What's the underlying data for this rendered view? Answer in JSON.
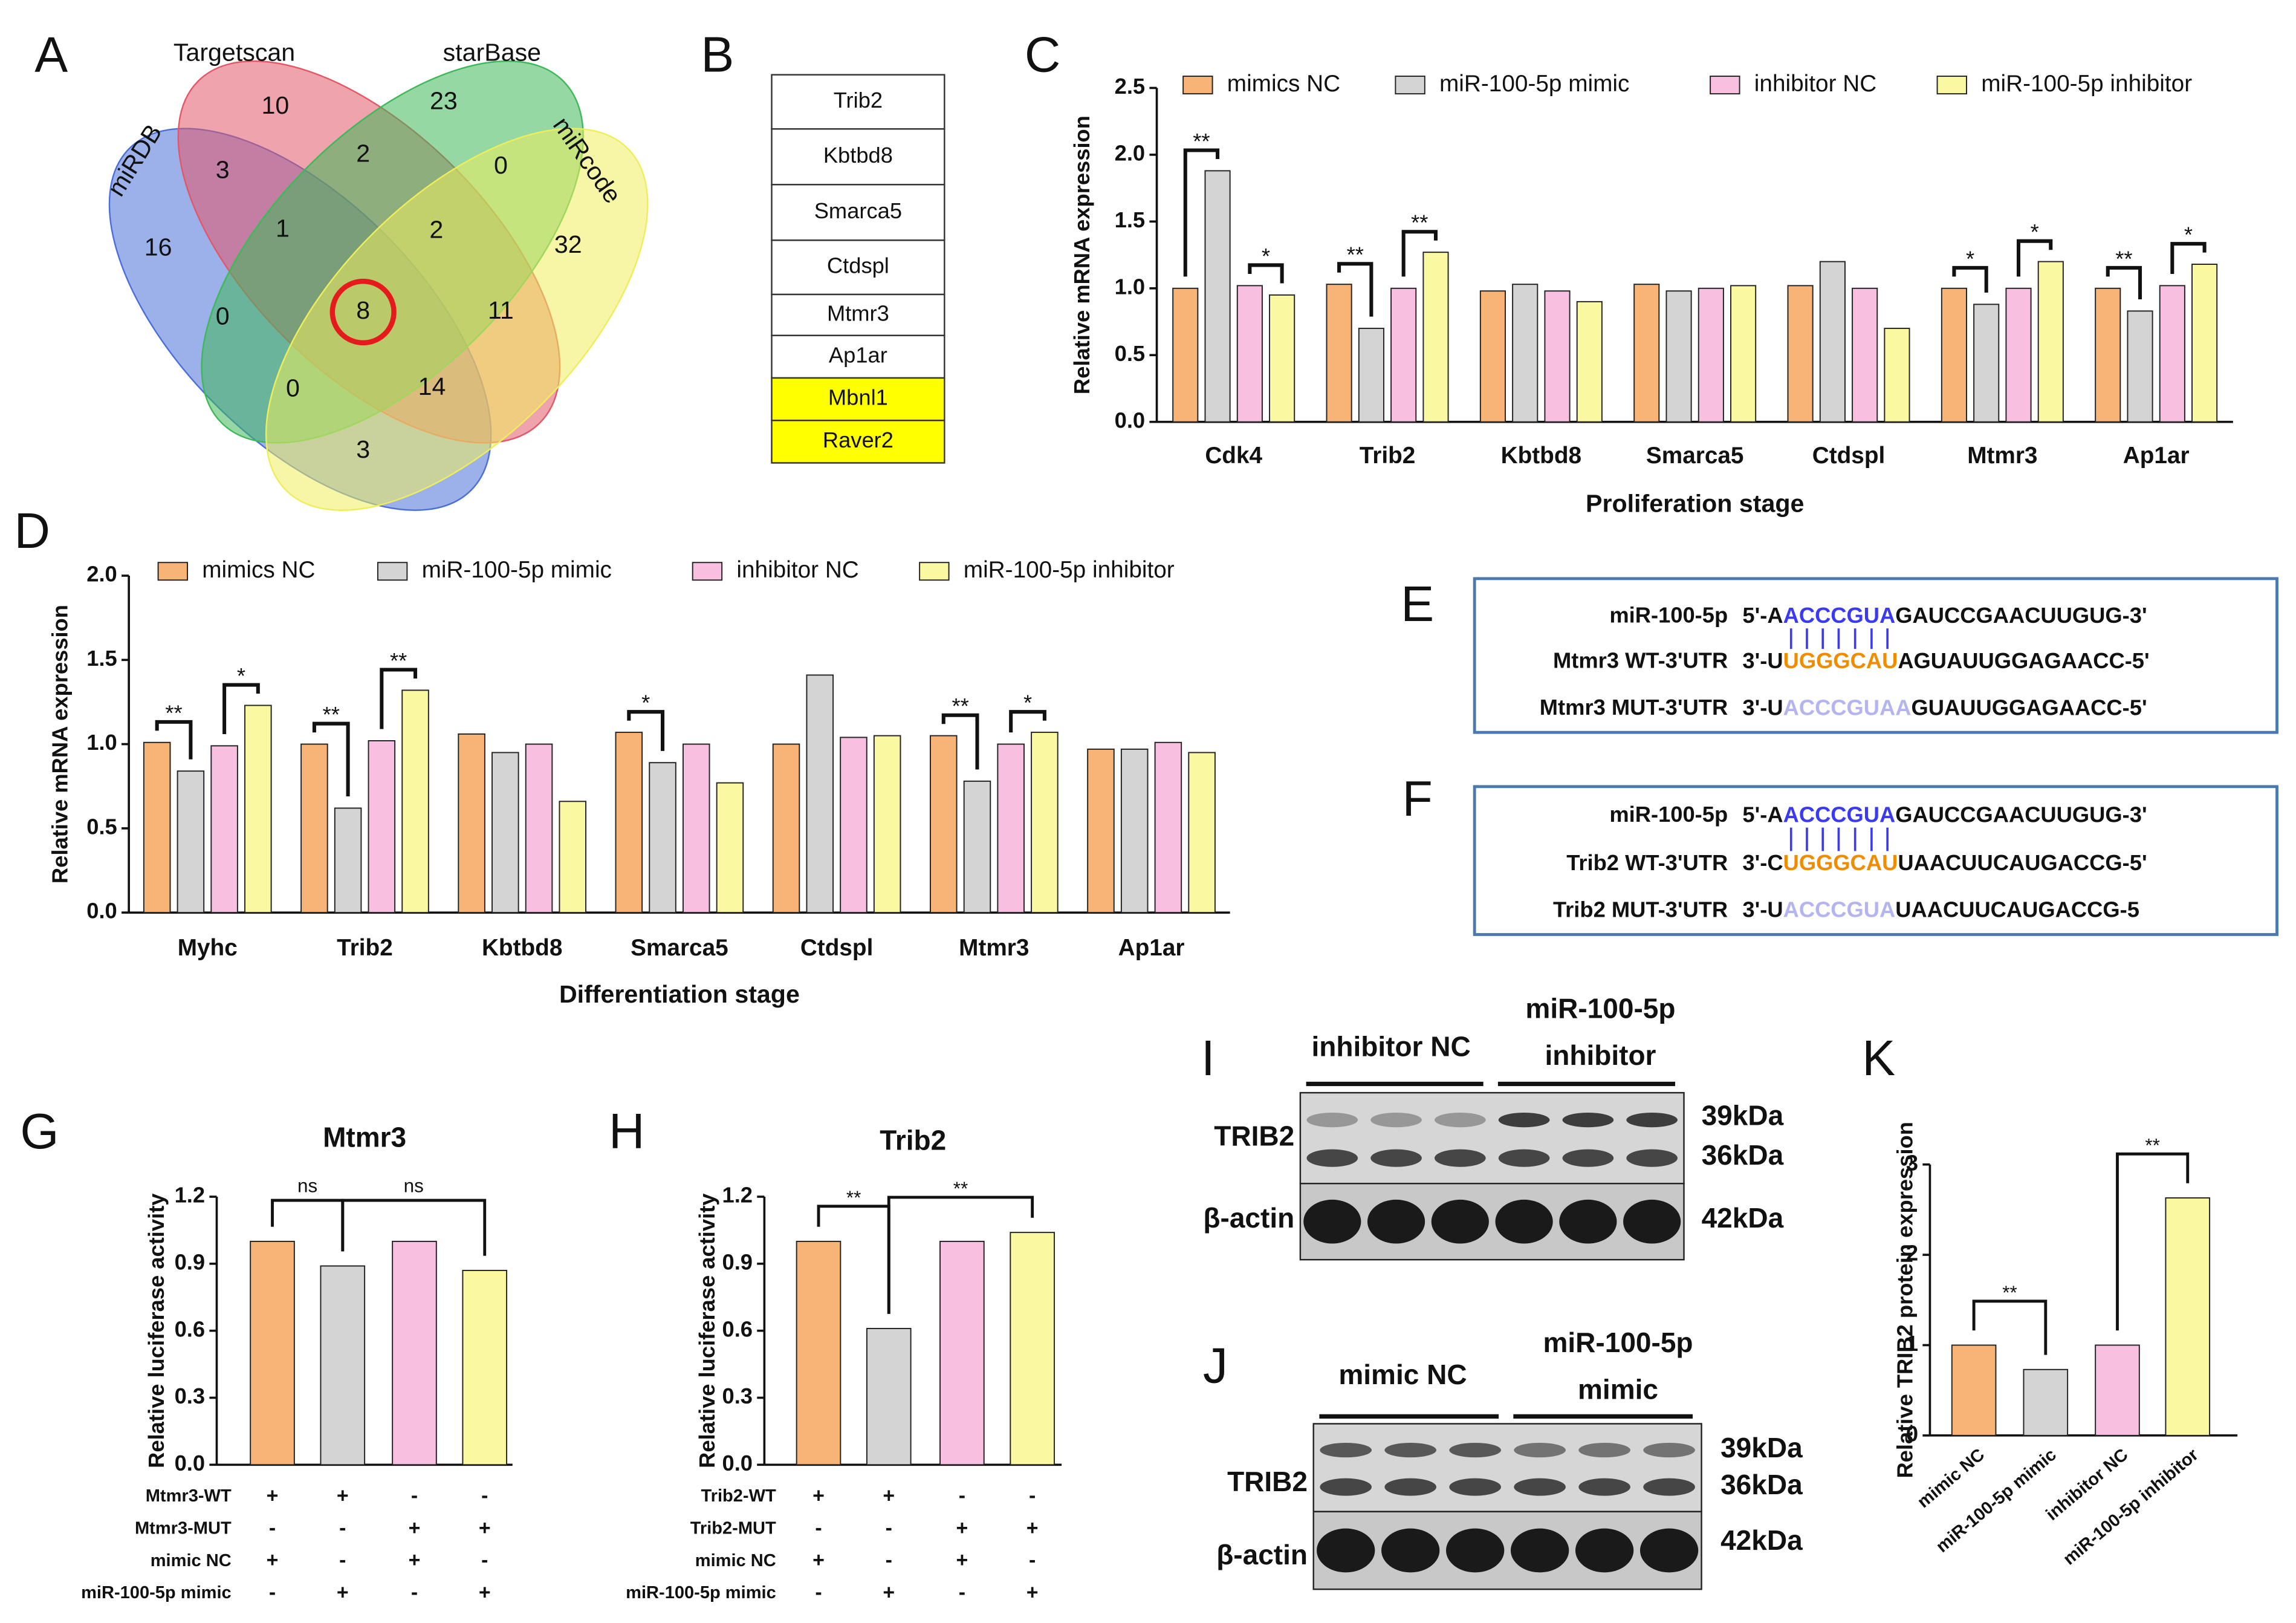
{
  "panel_labels": [
    "A",
    "B",
    "C",
    "D",
    "E",
    "F",
    "G",
    "H",
    "I",
    "J",
    "K"
  ],
  "venn": {
    "sets": [
      "miRDB",
      "Targetscan",
      "starBase",
      "miRcode"
    ],
    "colors": [
      "#4a6fd8",
      "#e25868",
      "#3fb85a",
      "#eeee5c"
    ],
    "regions": [
      10,
      23,
      3,
      2,
      0,
      16,
      1,
      2,
      32,
      0,
      8,
      11,
      0,
      14,
      3
    ]
  },
  "gene_table": {
    "rows": [
      {
        "text": "Trib2"
      },
      {
        "text": "Kbtbd8"
      },
      {
        "text": "Smarca5"
      },
      {
        "text": "Ctdspl"
      },
      {
        "text": "Mtmr3"
      },
      {
        "text": "Ap1ar"
      },
      {
        "text": "Mbnl1",
        "highlight": "#ffff00"
      },
      {
        "text": "Raver2",
        "highlight": "#ffff00"
      }
    ]
  },
  "sequences": [
    {
      "rows": [
        {
          "label": "miR-100-5p",
          "segments": [
            {
              "text": "5'-A",
              "color": "#111111"
            },
            {
              "text": "ACCCGUA",
              "color": "#3a3af0"
            },
            {
              "text": "GAUCCGAACUUGUG-3'",
              "color": "#111111"
            }
          ]
        },
        {
          "label": "Mtmr3 WT-3'UTR",
          "segments": [
            {
              "text": "3'-U",
              "color": "#111111"
            },
            {
              "text": "UGGGCAU",
              "color": "#f08c00"
            },
            {
              "text": "AGUAUUGGAGAACC-5'",
              "color": "#111111"
            }
          ]
        },
        {
          "label": "Mtmr3 MUT-3'UTR",
          "segments": [
            {
              "text": "3'-U",
              "color": "#111111"
            },
            {
              "text": "ACCCGUAA",
              "color": "#b4b4f0"
            },
            {
              "text": "GUAUUGGAGAACC-5'",
              "color": "#111111"
            }
          ]
        }
      ]
    },
    {
      "rows": [
        {
          "label": "miR-100-5p",
          "segments": [
            {
              "text": "5'-A",
              "color": "#111111"
            },
            {
              "text": "ACCCGUA",
              "color": "#3a3af0"
            },
            {
              "text": "GAUCCGAACUUGUG-3'",
              "color": "#111111"
            }
          ]
        },
        {
          "label": "Trib2 WT-3'UTR",
          "segments": [
            {
              "text": "3'-C",
              "color": "#111111"
            },
            {
              "text": "UGGGCAU",
              "color": "#f08c00"
            },
            {
              "text": "UAACUUCAUGACCG-5'",
              "color": "#111111"
            }
          ]
        },
        {
          "label": "Trib2 MUT-3'UTR",
          "segments": [
            {
              "text": "3'-U",
              "color": "#111111"
            },
            {
              "text": "ACCCGUA",
              "color": "#b4b4f0"
            },
            {
              "text": "UAACUUCAUGACCG-5",
              "color": "#111111"
            }
          ]
        }
      ]
    }
  ],
  "blots": [
    {
      "groups": [
        [
          "inhibitor NC"
        ],
        [
          "miR-100-5p",
          "inhibitor"
        ]
      ],
      "proteins": [
        "TRIB2",
        "β-actin"
      ],
      "sizes": [
        "39kDa",
        "36kDa",
        "42kDa"
      ]
    },
    {
      "groups": [
        [
          "mimic NC"
        ],
        [
          "miR-100-5p",
          "mimic"
        ]
      ],
      "proteins": [
        "TRIB2",
        "β-actin"
      ],
      "sizes": [
        "39kDa",
        "36kDa",
        "42kDa"
      ]
    }
  ],
  "chart_data": [
    {
      "type": "bar",
      "ylabel": "Relative mRNA expression",
      "xlabel": "Proliferation stage",
      "categories": [
        "Cdk4",
        "Trib2",
        "Kbtbd8",
        "Smarca5",
        "Ctdspl",
        "Mtmr3",
        "Ap1ar"
      ],
      "series": [
        {
          "name": "mimics NC",
          "color": "#f8b477",
          "values": [
            1.0,
            1.03,
            0.98,
            1.03,
            1.02,
            1.0,
            1.0
          ]
        },
        {
          "name": "miR-100-5p mimic",
          "color": "#d4d4d4",
          "values": [
            1.88,
            0.7,
            1.03,
            0.98,
            1.2,
            0.88,
            0.83
          ]
        },
        {
          "name": "inhibitor NC",
          "color": "#f9bfe0",
          "values": [
            1.02,
            1.0,
            0.98,
            1.0,
            1.0,
            1.0,
            1.02
          ]
        },
        {
          "name": "miR-100-5p inhibitor",
          "color": "#fbf8a2",
          "values": [
            0.95,
            1.27,
            0.9,
            1.02,
            0.7,
            1.2,
            1.18
          ]
        }
      ],
      "ylim": [
        0,
        2.5
      ],
      "yticks": [
        {
          "value": 0,
          "label": "0.0"
        },
        0.5,
        {
          "value": 1,
          "label": "1.0"
        },
        1.5,
        {
          "value": 2,
          "label": "2.0"
        },
        2.5
      ],
      "brackets": [
        {
          "text": "**",
          "category": 0,
          "from": 0,
          "to": 1
        },
        {
          "text": "*",
          "category": 0,
          "from": 2,
          "to": 3
        },
        {
          "text": "**",
          "category": 1,
          "from": 0,
          "to": 1
        },
        {
          "text": "**",
          "category": 1,
          "from": 2,
          "to": 3
        },
        {
          "text": "*",
          "category": 5,
          "from": 0,
          "to": 1
        },
        {
          "text": "*",
          "category": 5,
          "from": 2,
          "to": 3
        },
        {
          "text": "**",
          "category": 6,
          "from": 0,
          "to": 1
        },
        {
          "text": "*",
          "category": 6,
          "from": 2,
          "to": 3
        }
      ]
    },
    {
      "type": "bar",
      "ylabel": "Relative mRNA expression",
      "xlabel": "Differentiation stage",
      "categories": [
        "Myhc",
        "Trib2",
        "Kbtbd8",
        "Smarca5",
        "Ctdspl",
        "Mtmr3",
        "Ap1ar"
      ],
      "series": [
        {
          "name": "mimics NC",
          "color": "#f8b477",
          "values": [
            1.01,
            1.0,
            1.06,
            1.07,
            1.0,
            1.05,
            0.97
          ]
        },
        {
          "name": "miR-100-5p mimic",
          "color": "#d4d4d4",
          "values": [
            0.84,
            0.62,
            0.95,
            0.89,
            1.41,
            0.78,
            0.97
          ]
        },
        {
          "name": "inhibitor NC",
          "color": "#f9bfe0",
          "values": [
            0.99,
            1.02,
            1.0,
            1.0,
            1.04,
            1.0,
            1.01
          ]
        },
        {
          "name": "miR-100-5p inhibitor",
          "color": "#fbf8a2",
          "values": [
            1.23,
            1.32,
            0.66,
            0.77,
            1.05,
            1.07,
            0.95
          ]
        }
      ],
      "ylim": [
        0,
        2
      ],
      "yticks": [
        {
          "value": 0,
          "label": "0.0"
        },
        0.5,
        {
          "value": 1,
          "label": "1.0"
        },
        1.5,
        {
          "value": 2,
          "label": "2.0"
        }
      ],
      "brackets": [
        {
          "text": "**",
          "category": 0,
          "from": 0,
          "to": 1
        },
        {
          "text": "*",
          "category": 0,
          "from": 2,
          "to": 3
        },
        {
          "text": "**",
          "category": 1,
          "from": 0,
          "to": 1
        },
        {
          "text": "**",
          "category": 1,
          "from": 2,
          "to": 3
        },
        {
          "text": "*",
          "category": 3,
          "from": 0,
          "to": 1
        },
        {
          "text": "**",
          "category": 5,
          "from": 0,
          "to": 1
        },
        {
          "text": "*",
          "category": 5,
          "from": 2,
          "to": 3
        }
      ]
    },
    {
      "type": "bar",
      "title": "Mtmr3",
      "ylabel": "Relative luciferase activity",
      "values": [
        1.0,
        0.89,
        1.0,
        0.87
      ],
      "colors": [
        "#f8b477",
        "#d4d4d4",
        "#f9bfe0",
        "#fbf8a2"
      ],
      "ylim": [
        0,
        1.2
      ],
      "yticks": [
        {
          "value": 0,
          "label": "0.0"
        },
        0.3,
        0.6,
        0.9,
        1.2
      ],
      "brackets": [
        {
          "text": "ns",
          "from": 0,
          "to": 1
        },
        {
          "text": "ns",
          "from": 1,
          "to": 3
        }
      ],
      "conditions": [
        {
          "name": "Mtmr3-WT",
          "marks": [
            "+",
            "+",
            "-",
            "-"
          ]
        },
        {
          "name": "Mtmr3-MUT",
          "marks": [
            "-",
            "-",
            "+",
            "+"
          ]
        },
        {
          "name": "mimic NC",
          "marks": [
            "+",
            "-",
            "+",
            "-"
          ]
        },
        {
          "name": "miR-100-5p mimic",
          "marks": [
            "-",
            "+",
            "-",
            "+"
          ]
        }
      ]
    },
    {
      "type": "bar",
      "title": "Trib2",
      "ylabel": "Relative luciferase activity",
      "values": [
        1.0,
        0.61,
        1.0,
        1.04
      ],
      "colors": [
        "#f8b477",
        "#d4d4d4",
        "#f9bfe0",
        "#fbf8a2"
      ],
      "ylim": [
        0,
        1.2
      ],
      "yticks": [
        {
          "value": 0,
          "label": "0.0"
        },
        0.3,
        0.6,
        0.9,
        1.2
      ],
      "brackets": [
        {
          "text": "**",
          "from": 0,
          "to": 1
        },
        {
          "text": "**",
          "from": 1,
          "to": 3
        }
      ],
      "conditions": [
        {
          "name": "Trib2-WT",
          "marks": [
            "+",
            "+",
            "-",
            "-"
          ]
        },
        {
          "name": "Trib2-MUT",
          "marks": [
            "-",
            "-",
            "+",
            "+"
          ]
        },
        {
          "name": "mimic NC",
          "marks": [
            "+",
            "-",
            "+",
            "-"
          ]
        },
        {
          "name": "miR-100-5p mimic",
          "marks": [
            "-",
            "+",
            "-",
            "+"
          ]
        }
      ]
    },
    {
      "type": "bar",
      "ylabel": "Relative TRIB2 protein expression",
      "categories": [
        "mimic NC",
        "miR-100-5p mimic",
        "inhibitor NC",
        "miR-100-5p inhibitor"
      ],
      "values": [
        1.0,
        0.73,
        1.0,
        2.63
      ],
      "colors": [
        "#f8b477",
        "#d4d4d4",
        "#f9bfe0",
        "#fbf8a2"
      ],
      "ylim": [
        0,
        3
      ],
      "yticks": [
        0,
        1,
        2,
        3
      ],
      "brackets": [
        {
          "text": "**",
          "from": 0,
          "to": 1
        },
        {
          "text": "**",
          "from": 2,
          "to": 3
        }
      ]
    }
  ]
}
